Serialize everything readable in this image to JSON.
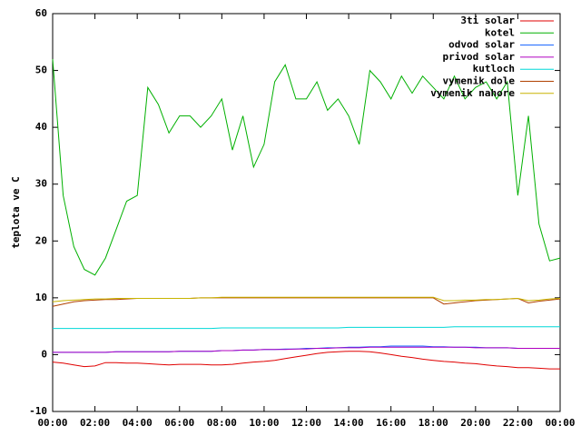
{
  "chart_data": {
    "type": "line",
    "ylabel": "teplota ve C",
    "x": [
      0,
      0.5,
      1,
      1.5,
      2,
      2.5,
      3,
      3.5,
      4,
      4.5,
      5,
      5.5,
      6,
      6.5,
      7,
      7.5,
      8,
      8.5,
      9,
      9.5,
      10,
      10.5,
      11,
      11.5,
      12,
      12.5,
      13,
      13.5,
      14,
      14.5,
      15,
      15.5,
      16,
      16.5,
      17,
      17.5,
      18,
      18.5,
      19,
      19.5,
      20,
      20.5,
      21,
      21.5,
      22,
      22.5,
      23,
      23.5,
      24
    ],
    "xlim": [
      0,
      24
    ],
    "xticks": [
      {
        "value": 0,
        "label": "00:00"
      },
      {
        "value": 2,
        "label": "02:00"
      },
      {
        "value": 4,
        "label": "04:00"
      },
      {
        "value": 6,
        "label": "06:00"
      },
      {
        "value": 8,
        "label": "08:00"
      },
      {
        "value": 10,
        "label": "10:00"
      },
      {
        "value": 12,
        "label": "12:00"
      },
      {
        "value": 14,
        "label": "14:00"
      },
      {
        "value": 16,
        "label": "16:00"
      },
      {
        "value": 18,
        "label": "18:00"
      },
      {
        "value": 20,
        "label": "20:00"
      },
      {
        "value": 22,
        "label": "22:00"
      },
      {
        "value": 24,
        "label": "00:00"
      }
    ],
    "ylim": [
      -10,
      60
    ],
    "yticks": [
      -10,
      0,
      10,
      20,
      30,
      40,
      50,
      60
    ],
    "legend": "upper right",
    "series": [
      {
        "name": "3ti solar",
        "color": "#e00000",
        "values": [
          -1.3,
          -1.5,
          -1.8,
          -2.1,
          -2.0,
          -1.4,
          -1.4,
          -1.5,
          -1.5,
          -1.6,
          -1.7,
          -1.8,
          -1.7,
          -1.7,
          -1.7,
          -1.8,
          -1.8,
          -1.7,
          -1.5,
          -1.3,
          -1.2,
          -1.0,
          -0.7,
          -0.4,
          -0.1,
          0.2,
          0.4,
          0.5,
          0.6,
          0.6,
          0.5,
          0.3,
          0,
          -0.3,
          -0.5,
          -0.8,
          -1,
          -1.2,
          -1.3,
          -1.5,
          -1.6,
          -1.8,
          -2,
          -2.1,
          -2.3,
          -2.3,
          -2.4,
          -2.5,
          -2.5
        ]
      },
      {
        "name": "kotel",
        "color": "#00b000",
        "values": [
          52,
          28,
          19,
          15,
          14,
          17,
          22,
          27,
          28,
          47,
          44,
          39,
          42,
          42,
          40,
          42,
          45,
          36,
          42,
          33,
          37,
          48,
          51,
          45,
          45,
          48,
          43,
          45,
          42,
          37,
          50,
          48,
          45,
          49,
          46,
          49,
          47,
          45,
          49,
          45,
          47,
          48,
          45,
          48,
          28,
          42,
          23,
          16.5,
          17
        ]
      },
      {
        "name": "odvod solar",
        "color": "#1060ff",
        "values": [
          0.4,
          0.4,
          0.4,
          0.4,
          0.4,
          0.4,
          0.5,
          0.5,
          0.5,
          0.5,
          0.5,
          0.5,
          0.6,
          0.6,
          0.6,
          0.6,
          0.7,
          0.7,
          0.8,
          0.8,
          0.9,
          0.9,
          1.0,
          1.0,
          1.1,
          1.1,
          1.2,
          1.2,
          1.3,
          1.3,
          1.4,
          1.4,
          1.5,
          1.5,
          1.5,
          1.5,
          1.4,
          1.4,
          1.3,
          1.3,
          1.3,
          1.2,
          1.2,
          1.2,
          1.1,
          1.1,
          1.1,
          1.1,
          1.1
        ]
      },
      {
        "name": "privod solar",
        "color": "#b000c0",
        "values": [
          0.4,
          0.4,
          0.4,
          0.4,
          0.4,
          0.4,
          0.5,
          0.5,
          0.5,
          0.5,
          0.5,
          0.5,
          0.6,
          0.6,
          0.6,
          0.6,
          0.7,
          0.7,
          0.8,
          0.8,
          0.9,
          0.9,
          0.9,
          1.0,
          1.0,
          1.1,
          1.1,
          1.2,
          1.2,
          1.2,
          1.3,
          1.3,
          1.3,
          1.3,
          1.3,
          1.3,
          1.3,
          1.3,
          1.3,
          1.3,
          1.2,
          1.2,
          1.2,
          1.2,
          1.1,
          1.1,
          1.1,
          1.1,
          1.1
        ]
      },
      {
        "name": "kutloch",
        "color": "#00d8d8",
        "values": [
          4.6,
          4.6,
          4.6,
          4.6,
          4.6,
          4.6,
          4.6,
          4.6,
          4.6,
          4.6,
          4.6,
          4.6,
          4.6,
          4.6,
          4.6,
          4.6,
          4.7,
          4.7,
          4.7,
          4.7,
          4.7,
          4.7,
          4.7,
          4.7,
          4.7,
          4.7,
          4.7,
          4.7,
          4.8,
          4.8,
          4.8,
          4.8,
          4.8,
          4.8,
          4.8,
          4.8,
          4.8,
          4.8,
          4.9,
          4.9,
          4.9,
          4.9,
          4.9,
          4.9,
          4.9,
          4.9,
          4.9,
          4.9,
          4.9
        ]
      },
      {
        "name": "vymenik dole",
        "color": "#b04000",
        "values": [
          8.5,
          8.9,
          9.3,
          9.5,
          9.6,
          9.7,
          9.7,
          9.8,
          9.9,
          9.9,
          9.9,
          9.9,
          9.9,
          9.9,
          10,
          10,
          10,
          10,
          10,
          10,
          10,
          10,
          10,
          10,
          10,
          10,
          10,
          10,
          10,
          10,
          10,
          10,
          10,
          10,
          10,
          10,
          10,
          8.9,
          9.1,
          9.3,
          9.5,
          9.6,
          9.7,
          9.8,
          9.9,
          9.1,
          9.4,
          9.6,
          9.8
        ]
      },
      {
        "name": "vymenik nahore",
        "color": "#c8b400",
        "values": [
          9.3,
          9.5,
          9.6,
          9.7,
          9.8,
          9.8,
          9.9,
          9.9,
          9.9,
          9.9,
          9.9,
          9.9,
          9.9,
          9.9,
          10,
          10,
          10.1,
          10.1,
          10.1,
          10.1,
          10.1,
          10.1,
          10.1,
          10.1,
          10.1,
          10.1,
          10.1,
          10.1,
          10.1,
          10.1,
          10.1,
          10.1,
          10.1,
          10.1,
          10.1,
          10.1,
          10.1,
          9.5,
          9.5,
          9.6,
          9.6,
          9.7,
          9.7,
          9.8,
          9.9,
          9.5,
          9.6,
          9.8,
          9.9
        ]
      }
    ]
  }
}
